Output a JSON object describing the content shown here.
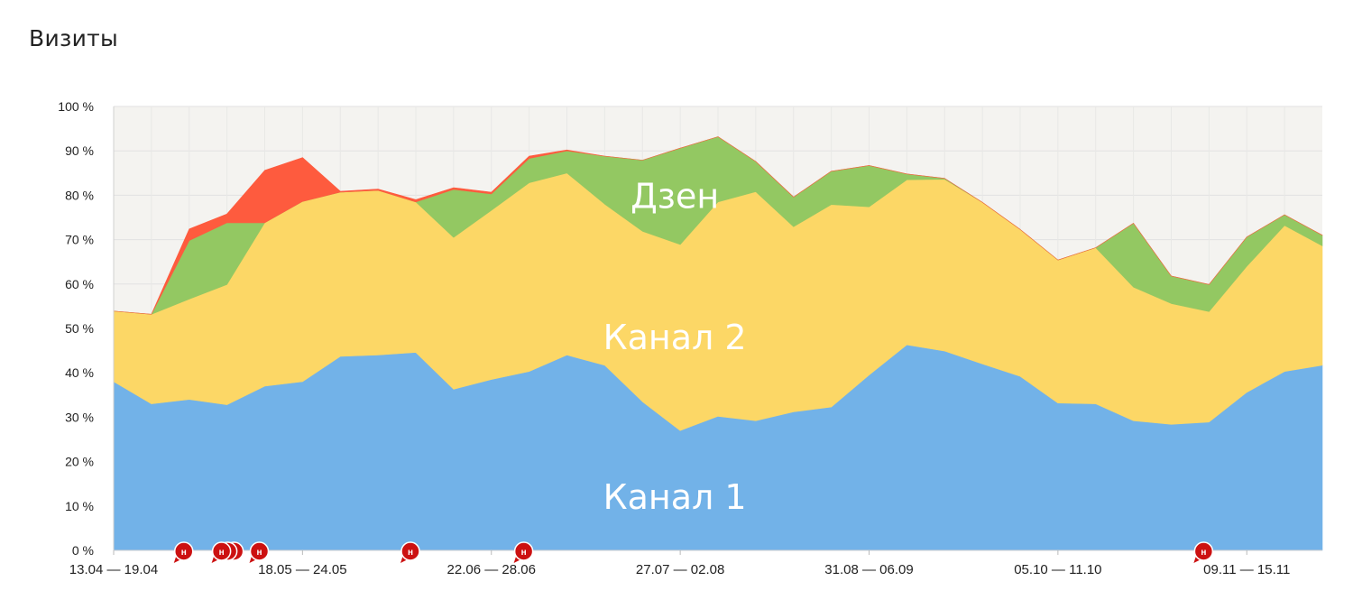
{
  "page": {
    "title": "Визиты"
  },
  "chart_data": {
    "type": "area",
    "stacked": true,
    "ylim": [
      0,
      100
    ],
    "y_tick_labels": [
      "0 %",
      "10 %",
      "20 %",
      "30 %",
      "40 %",
      "50 %",
      "60 %",
      "70 %",
      "80 %",
      "90 %",
      "100 %"
    ],
    "x_tick_labels": [
      {
        "index": 0,
        "label": "13.04 — 19.04"
      },
      {
        "index": 5,
        "label": "18.05 — 24.05"
      },
      {
        "index": 10,
        "label": "22.06 — 28.06"
      },
      {
        "index": 15,
        "label": "27.07 — 02.08"
      },
      {
        "index": 20,
        "label": "31.08 — 06.09"
      },
      {
        "index": 25,
        "label": "05.10 — 11.10"
      },
      {
        "index": 30,
        "label": "09.11 — 15.11"
      }
    ],
    "grid": true,
    "series": [
      {
        "name": "Канал 1",
        "color": "#72b2e8",
        "values": [
          38,
          33,
          34,
          32.8,
          37,
          38,
          43.7,
          44,
          44.6,
          36.3,
          38.5,
          40.3,
          44,
          41.7,
          33.5,
          27,
          30.2,
          29.2,
          31.2,
          32.3,
          39.5,
          46.3,
          44.9,
          42,
          39.2,
          33.2,
          33,
          29.2,
          28.4,
          28.9,
          35.6,
          40.3,
          41.7
        ]
      },
      {
        "name": "Канал 2",
        "color": "#fcd766",
        "values": [
          15.9,
          20.2,
          22.6,
          27.1,
          36.8,
          40.6,
          37,
          37.1,
          33.9,
          34.2,
          38.1,
          42.5,
          41,
          36.3,
          38.4,
          41.9,
          48.3,
          51.6,
          41.7,
          45.6,
          37.9,
          37.2,
          38.7,
          36.4,
          33.1,
          32.2,
          35.2,
          30.1,
          27.2,
          24.9,
          28.4,
          32.9,
          26.9
        ]
      },
      {
        "name": "Дзен",
        "color": "#93c862",
        "values": [
          0,
          0,
          13.2,
          13.9,
          0,
          0,
          0,
          0,
          0,
          10.8,
          3.7,
          5.5,
          5,
          10.8,
          16,
          21.7,
          14.7,
          6.8,
          6.7,
          7.5,
          9.3,
          1.3,
          0.2,
          0,
          0,
          0,
          0,
          14.4,
          6.2,
          6.1,
          6.6,
          2.4,
          2.4
        ]
      },
      {
        "name": "",
        "color": "#fe5b3e",
        "values": [
          0,
          0,
          2.6,
          2,
          11.8,
          9.9,
          0.2,
          0.3,
          0.5,
          0.4,
          0.4,
          0.5,
          0.2,
          0,
          0,
          0,
          0,
          0,
          0,
          0,
          0,
          0,
          0,
          0,
          0,
          0,
          0,
          0,
          0,
          0,
          0,
          0,
          0
        ]
      }
    ],
    "band_labels": [
      "Дзен",
      "Канал 2",
      "Канал 1"
    ],
    "markers": [
      {
        "index": 2,
        "label": "н",
        "count": 1
      },
      {
        "index": 3,
        "label": "н",
        "count": 3
      },
      {
        "index": 4,
        "label": "н",
        "count": 1
      },
      {
        "index": 8,
        "label": "н",
        "count": 1
      },
      {
        "index": 11,
        "label": "н",
        "count": 1
      },
      {
        "index": 29,
        "label": "н",
        "count": 1
      }
    ],
    "background_color": "#f4f3f0",
    "marker_color": "#cc1111"
  }
}
